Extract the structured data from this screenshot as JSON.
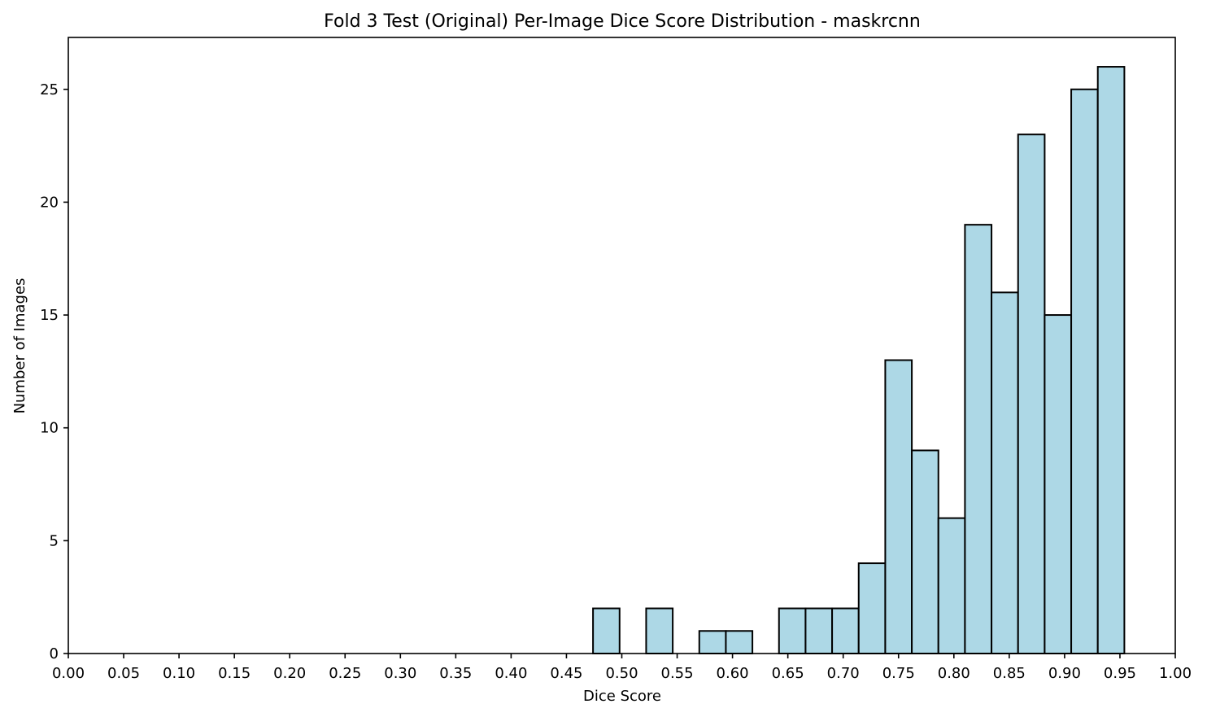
{
  "chart_data": {
    "type": "bar",
    "title": "Fold 3 Test (Original) Per-Image Dice Score Distribution - maskrcnn",
    "xlabel": "Dice Score",
    "ylabel": "Number of Images",
    "xlim": [
      0.0,
      1.0
    ],
    "ylim": [
      0,
      27.3
    ],
    "x_ticks": [
      "0.00",
      "0.05",
      "0.10",
      "0.15",
      "0.20",
      "0.25",
      "0.30",
      "0.35",
      "0.40",
      "0.45",
      "0.50",
      "0.55",
      "0.60",
      "0.65",
      "0.70",
      "0.75",
      "0.80",
      "0.85",
      "0.90",
      "0.95",
      "1.00"
    ],
    "y_ticks": [
      "0",
      "5",
      "10",
      "15",
      "20",
      "25"
    ],
    "grid": false,
    "bar_color": "#add8e6",
    "edge_color": "#000000",
    "bins": [
      {
        "x0": 0.474,
        "x1": 0.498,
        "count": 2
      },
      {
        "x0": 0.522,
        "x1": 0.546,
        "count": 2
      },
      {
        "x0": 0.57,
        "x1": 0.594,
        "count": 1
      },
      {
        "x0": 0.594,
        "x1": 0.618,
        "count": 1
      },
      {
        "x0": 0.642,
        "x1": 0.666,
        "count": 2
      },
      {
        "x0": 0.666,
        "x1": 0.69,
        "count": 2
      },
      {
        "x0": 0.69,
        "x1": 0.714,
        "count": 2
      },
      {
        "x0": 0.714,
        "x1": 0.738,
        "count": 4
      },
      {
        "x0": 0.738,
        "x1": 0.762,
        "count": 13
      },
      {
        "x0": 0.762,
        "x1": 0.786,
        "count": 9
      },
      {
        "x0": 0.786,
        "x1": 0.81,
        "count": 6
      },
      {
        "x0": 0.81,
        "x1": 0.834,
        "count": 19
      },
      {
        "x0": 0.834,
        "x1": 0.858,
        "count": 16
      },
      {
        "x0": 0.858,
        "x1": 0.882,
        "count": 23
      },
      {
        "x0": 0.882,
        "x1": 0.906,
        "count": 15
      },
      {
        "x0": 0.906,
        "x1": 0.93,
        "count": 25
      },
      {
        "x0": 0.93,
        "x1": 0.954,
        "count": 26
      }
    ]
  }
}
